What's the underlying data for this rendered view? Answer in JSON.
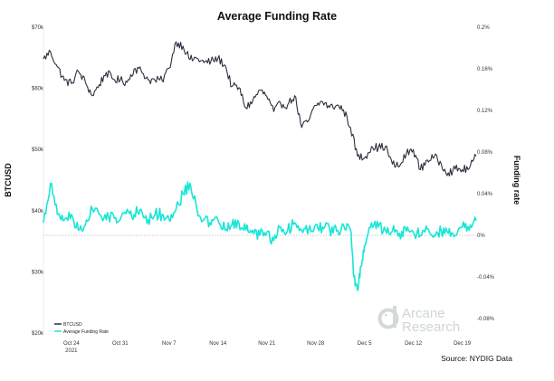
{
  "chart_data": {
    "type": "line",
    "title": "Average Funding Rate",
    "ylabel": "BTCUSD",
    "y2label": "Funding rate",
    "x_tick_labels": [
      "Oct 24",
      "Oct 31",
      "Nov 7",
      "Nov 14",
      "Nov 21",
      "Nov 28",
      "Dec 5",
      "Dec 12",
      "Dec 19"
    ],
    "x_year_label": "2021",
    "y_ticks": [
      {
        "value": 20000,
        "label": "$20k"
      },
      {
        "value": 30000,
        "label": "$30k"
      },
      {
        "value": 40000,
        "label": "$40k"
      },
      {
        "value": 50000,
        "label": "$50k"
      },
      {
        "value": 60000,
        "label": "$60k"
      },
      {
        "value": 70000,
        "label": "$70k"
      }
    ],
    "y2_ticks": [
      {
        "value": -0.08,
        "label": "-0.08%"
      },
      {
        "value": -0.04,
        "label": "-0.04%"
      },
      {
        "value": 0,
        "label": "0%"
      },
      {
        "value": 0.04,
        "label": "0.04%"
      },
      {
        "value": 0.08,
        "label": "0.08%"
      },
      {
        "value": 0.12,
        "label": "0.12%"
      },
      {
        "value": 0.16,
        "label": "0.16%"
      },
      {
        "value": 0.2,
        "label": "0.2%"
      }
    ],
    "ylim": [
      20000,
      70000
    ],
    "y2lim": [
      -0.08,
      0.2
    ],
    "xlim": [
      "2021-10-20",
      "2021-12-21"
    ],
    "grid": false,
    "legend_position": "bottom-left",
    "series": [
      {
        "name": "BTCUSD",
        "axis": "left",
        "color": "#2b2f3e",
        "x": [
          "2021-10-20",
          "2021-10-21",
          "2021-10-22",
          "2021-10-23",
          "2021-10-24",
          "2021-10-25",
          "2021-10-26",
          "2021-10-27",
          "2021-10-28",
          "2021-10-29",
          "2021-10-30",
          "2021-10-31",
          "2021-11-01",
          "2021-11-02",
          "2021-11-03",
          "2021-11-04",
          "2021-11-05",
          "2021-11-06",
          "2021-11-07",
          "2021-11-08",
          "2021-11-09",
          "2021-11-10",
          "2021-11-11",
          "2021-11-12",
          "2021-11-13",
          "2021-11-14",
          "2021-11-15",
          "2021-11-16",
          "2021-11-17",
          "2021-11-18",
          "2021-11-19",
          "2021-11-20",
          "2021-11-21",
          "2021-11-22",
          "2021-11-23",
          "2021-11-24",
          "2021-11-25",
          "2021-11-26",
          "2021-11-27",
          "2021-11-28",
          "2021-11-29",
          "2021-11-30",
          "2021-12-01",
          "2021-12-02",
          "2021-12-03",
          "2021-12-04",
          "2021-12-05",
          "2021-12-06",
          "2021-12-07",
          "2021-12-08",
          "2021-12-09",
          "2021-12-10",
          "2021-12-11",
          "2021-12-12",
          "2021-12-13",
          "2021-12-14",
          "2021-12-15",
          "2021-12-16",
          "2021-12-17",
          "2021-12-18",
          "2021-12-19",
          "2021-12-20",
          "2021-12-21"
        ],
        "values": [
          64800,
          66000,
          63500,
          61300,
          60800,
          62800,
          61000,
          58800,
          60600,
          62600,
          61500,
          61300,
          61000,
          63200,
          62900,
          61400,
          61300,
          61300,
          63300,
          67600,
          66900,
          64700,
          64900,
          64200,
          64400,
          64900,
          63800,
          60300,
          60100,
          56800,
          58000,
          59700,
          58700,
          56200,
          57500,
          57300,
          58800,
          53600,
          54700,
          57200,
          57800,
          56900,
          57200,
          56500,
          53600,
          48900,
          48600,
          50500,
          50300,
          50500,
          47600,
          47200,
          49300,
          50000,
          46700,
          48300,
          48800,
          47600,
          46200,
          46800,
          46700,
          46900,
          48900
        ]
      },
      {
        "name": "Average Funding Rate",
        "axis": "right",
        "color": "#18e6d6",
        "x": [
          "2021-10-20",
          "2021-10-21",
          "2021-10-22",
          "2021-10-23",
          "2021-10-24",
          "2021-10-25",
          "2021-10-26",
          "2021-10-27",
          "2021-10-28",
          "2021-10-29",
          "2021-10-30",
          "2021-10-31",
          "2021-11-01",
          "2021-11-02",
          "2021-11-03",
          "2021-11-04",
          "2021-11-05",
          "2021-11-06",
          "2021-11-07",
          "2021-11-08",
          "2021-11-09",
          "2021-11-10",
          "2021-11-11",
          "2021-11-12",
          "2021-11-13",
          "2021-11-14",
          "2021-11-15",
          "2021-11-16",
          "2021-11-17",
          "2021-11-18",
          "2021-11-19",
          "2021-11-20",
          "2021-11-21",
          "2021-11-22",
          "2021-11-23",
          "2021-11-24",
          "2021-11-25",
          "2021-11-26",
          "2021-11-27",
          "2021-11-28",
          "2021-11-29",
          "2021-11-30",
          "2021-12-01",
          "2021-12-02",
          "2021-12-03",
          "2021-12-03T12:00",
          "2021-12-04",
          "2021-12-04T12:00",
          "2021-12-05",
          "2021-12-06",
          "2021-12-07",
          "2021-12-08",
          "2021-12-09",
          "2021-12-10",
          "2021-12-11",
          "2021-12-12",
          "2021-12-13",
          "2021-12-14",
          "2021-12-15",
          "2021-12-16",
          "2021-12-17",
          "2021-12-18",
          "2021-12-19",
          "2021-12-20",
          "2021-12-21"
        ],
        "values": [
          0.012,
          0.05,
          0.02,
          0.015,
          0.02,
          0.005,
          0.01,
          0.025,
          0.02,
          0.015,
          0.02,
          0.015,
          0.025,
          0.02,
          0.025,
          0.015,
          0.02,
          0.02,
          0.015,
          0.025,
          0.04,
          0.05,
          0.025,
          0.015,
          0.01,
          0.015,
          0.005,
          0.01,
          0.012,
          0.005,
          0.005,
          0.0,
          0.003,
          -0.005,
          0.008,
          0.005,
          0.012,
          0.005,
          0.006,
          0.01,
          0.008,
          0.006,
          0.004,
          0.01,
          0.005,
          -0.04,
          -0.053,
          -0.03,
          -0.01,
          0.012,
          0.008,
          0.005,
          0.004,
          0.002,
          0.004,
          0.003,
          0.0,
          0.006,
          0.0,
          0.004,
          0.002,
          0.0,
          0.008,
          0.005,
          0.014
        ]
      }
    ],
    "annotations": {
      "source": "Source: NYDIG Data",
      "watermark": [
        "Arcane",
        "Research"
      ]
    }
  }
}
